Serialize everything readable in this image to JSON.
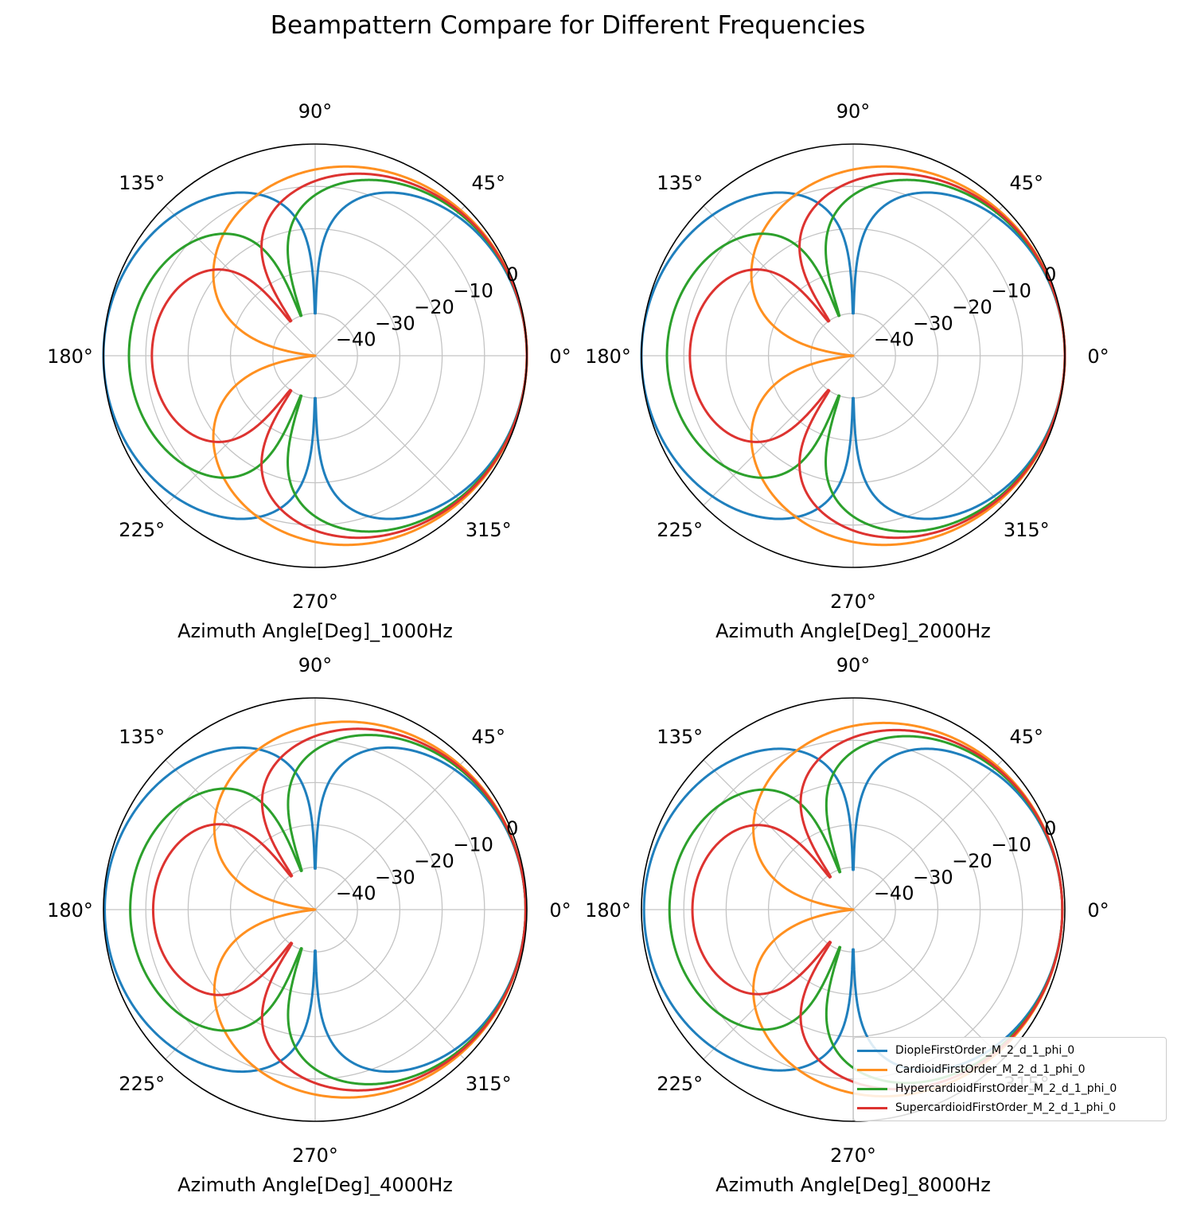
{
  "title": "Beampattern Compare for Different Frequencies",
  "colors": {
    "dipole": "#1f7fbd",
    "cardioid": "#ff9020",
    "hypercardioid": "#2ca02c",
    "supercardioid": "#dd3330"
  },
  "legend": [
    {
      "label": "DiopleFirstOrder_M_2_d_1_phi_0",
      "color": "#1f7fbd"
    },
    {
      "label": "CardioidFirstOrder_M_2_d_1_phi_0",
      "color": "#ff9020"
    },
    {
      "label": "HypercardioidFirstOrder_M_2_d_1_phi_0",
      "color": "#2ca02c"
    },
    {
      "label": "SupercardioidFirstOrder_M_2_d_1_phi_0",
      "color": "#dd3330"
    }
  ],
  "chart_data": [
    {
      "type": "line",
      "projection": "polar",
      "xlabel": "Azimuth Angle[Deg]_1000Hz",
      "theta_ticks": [
        "0°",
        "45°",
        "90°",
        "135°",
        "180°",
        "225°",
        "270°",
        "315°"
      ],
      "r_ticks": [
        "−40",
        "−30",
        "−20",
        "−10",
        "0"
      ],
      "rlim": [
        -50,
        0
      ],
      "grid": true,
      "series": [
        {
          "name": "DiopleFirstOrder_M_2_d_1_phi_0",
          "pattern": [
            0.0,
            1.0
          ],
          "peak_db": 0.0,
          "floor_db": -40
        },
        {
          "name": "CardioidFirstOrder_M_2_d_1_phi_0",
          "pattern": [
            0.5,
            0.5
          ],
          "peak_db": 0.0,
          "floor_db": -50
        },
        {
          "name": "HypercardioidFirstOrder_M_2_d_1_phi_0",
          "pattern": [
            0.25,
            0.75
          ],
          "peak_db": 0.0,
          "floor_db": -40
        },
        {
          "name": "SupercardioidFirstOrder_M_2_d_1_phi_0",
          "pattern": [
            0.366,
            0.634
          ],
          "peak_db": 0.0,
          "floor_db": -40
        }
      ]
    },
    {
      "type": "line",
      "projection": "polar",
      "xlabel": "Azimuth Angle[Deg]_2000Hz",
      "theta_ticks": [
        "0°",
        "45°",
        "90°",
        "135°",
        "180°",
        "225°",
        "270°",
        "315°"
      ],
      "r_ticks": [
        "−40",
        "−30",
        "−20",
        "−10",
        "0"
      ],
      "rlim": [
        -50,
        0
      ],
      "grid": true,
      "series": [
        {
          "name": "DiopleFirstOrder_M_2_d_1_phi_0",
          "pattern": [
            0.0,
            1.0
          ],
          "peak_db": 0.0,
          "floor_db": -40
        },
        {
          "name": "CardioidFirstOrder_M_2_d_1_phi_0",
          "pattern": [
            0.5,
            0.5
          ],
          "peak_db": 0.0,
          "floor_db": -50
        },
        {
          "name": "HypercardioidFirstOrder_M_2_d_1_phi_0",
          "pattern": [
            0.25,
            0.75
          ],
          "peak_db": 0.0,
          "floor_db": -40
        },
        {
          "name": "SupercardioidFirstOrder_M_2_d_1_phi_0",
          "pattern": [
            0.366,
            0.634
          ],
          "peak_db": 0.0,
          "floor_db": -40
        }
      ]
    },
    {
      "type": "line",
      "projection": "polar",
      "xlabel": "Azimuth Angle[Deg]_4000Hz",
      "theta_ticks": [
        "0°",
        "45°",
        "90°",
        "135°",
        "180°",
        "225°",
        "270°",
        "315°"
      ],
      "r_ticks": [
        "−40",
        "−30",
        "−20",
        "−10",
        "0"
      ],
      "rlim": [
        -50,
        0
      ],
      "grid": true,
      "series": [
        {
          "name": "DiopleFirstOrder_M_2_d_1_phi_0",
          "pattern": [
            0.0,
            1.0
          ],
          "peak_db": -0.3,
          "floor_db": -40
        },
        {
          "name": "CardioidFirstOrder_M_2_d_1_phi_0",
          "pattern": [
            0.5,
            0.5
          ],
          "peak_db": -0.3,
          "floor_db": -50
        },
        {
          "name": "HypercardioidFirstOrder_M_2_d_1_phi_0",
          "pattern": [
            0.25,
            0.75
          ],
          "peak_db": -0.3,
          "floor_db": -40
        },
        {
          "name": "SupercardioidFirstOrder_M_2_d_1_phi_0",
          "pattern": [
            0.366,
            0.634
          ],
          "peak_db": -0.3,
          "floor_db": -40
        }
      ]
    },
    {
      "type": "line",
      "projection": "polar",
      "xlabel": "Azimuth Angle[Deg]_8000Hz",
      "theta_ticks": [
        "0°",
        "45°",
        "90°",
        "135°",
        "180°",
        "225°",
        "270°",
        "315°"
      ],
      "r_ticks": [
        "−40",
        "−30",
        "−20",
        "−10",
        "0"
      ],
      "rlim": [
        -50,
        0
      ],
      "grid": true,
      "series": [
        {
          "name": "DiopleFirstOrder_M_2_d_1_phi_0",
          "pattern": [
            0.0,
            1.0
          ],
          "peak_db": -0.6,
          "floor_db": -40
        },
        {
          "name": "CardioidFirstOrder_M_2_d_1_phi_0",
          "pattern": [
            0.5,
            0.5
          ],
          "peak_db": -0.6,
          "floor_db": -50
        },
        {
          "name": "HypercardioidFirstOrder_M_2_d_1_phi_0",
          "pattern": [
            0.25,
            0.75
          ],
          "peak_db": -0.6,
          "floor_db": -40
        },
        {
          "name": "SupercardioidFirstOrder_M_2_d_1_phi_0",
          "pattern": [
            0.366,
            0.634
          ],
          "peak_db": -0.6,
          "floor_db": -40
        }
      ]
    }
  ]
}
